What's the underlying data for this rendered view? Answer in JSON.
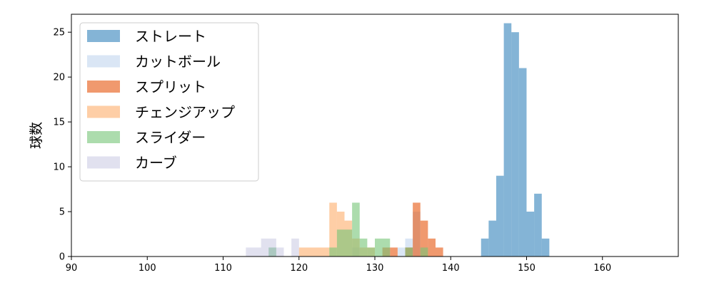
{
  "chart_data": {
    "type": "bar",
    "title": "",
    "xlabel": "",
    "ylabel": "球数",
    "xlim": [
      90,
      170
    ],
    "ylim": [
      0,
      27
    ],
    "xticks": [
      90,
      100,
      110,
      120,
      130,
      140,
      150,
      160
    ],
    "yticks": [
      0,
      5,
      10,
      15,
      20,
      25
    ],
    "grid": false,
    "legend_position": "top-left",
    "series": [
      {
        "name": "ストレート",
        "color": "#1f77b4",
        "opacity": 0.55,
        "bins": [
          {
            "x0": 144.0,
            "x1": 145.0,
            "count": 2
          },
          {
            "x0": 145.0,
            "x1": 146.0,
            "count": 4
          },
          {
            "x0": 146.0,
            "x1": 147.0,
            "count": 9
          },
          {
            "x0": 147.0,
            "x1": 148.0,
            "count": 26
          },
          {
            "x0": 148.0,
            "x1": 149.0,
            "count": 25
          },
          {
            "x0": 149.0,
            "x1": 150.0,
            "count": 21
          },
          {
            "x0": 150.0,
            "x1": 151.0,
            "count": 5
          },
          {
            "x0": 151.0,
            "x1": 152.0,
            "count": 7
          },
          {
            "x0": 152.0,
            "x1": 153.0,
            "count": 2
          }
        ]
      },
      {
        "name": "カットボール",
        "color": "#aec7e8",
        "opacity": 0.45,
        "bins": [
          {
            "x0": 116.0,
            "x1": 117.0,
            "count": 1
          },
          {
            "x0": 127.0,
            "x1": 128.0,
            "count": 1
          },
          {
            "x0": 133.0,
            "x1": 134.0,
            "count": 1
          },
          {
            "x0": 134.0,
            "x1": 135.0,
            "count": 2
          },
          {
            "x0": 135.0,
            "x1": 136.0,
            "count": 5
          }
        ]
      },
      {
        "name": "スプリット",
        "color": "#e6550d",
        "opacity": 0.6,
        "bins": [
          {
            "x0": 131.0,
            "x1": 132.0,
            "count": 1
          },
          {
            "x0": 132.0,
            "x1": 133.0,
            "count": 1
          },
          {
            "x0": 134.0,
            "x1": 135.0,
            "count": 1
          },
          {
            "x0": 135.0,
            "x1": 136.0,
            "count": 6
          },
          {
            "x0": 136.0,
            "x1": 137.0,
            "count": 4
          },
          {
            "x0": 137.0,
            "x1": 138.0,
            "count": 2
          },
          {
            "x0": 138.0,
            "x1": 139.0,
            "count": 1
          }
        ]
      },
      {
        "name": "チェンジアップ",
        "color": "#fdae6b",
        "opacity": 0.6,
        "bins": [
          {
            "x0": 120.0,
            "x1": 122.0,
            "count": 1
          },
          {
            "x0": 122.0,
            "x1": 124.0,
            "count": 1
          },
          {
            "x0": 124.0,
            "x1": 125.0,
            "count": 6
          },
          {
            "x0": 125.0,
            "x1": 126.0,
            "count": 5
          },
          {
            "x0": 126.0,
            "x1": 127.0,
            "count": 4
          },
          {
            "x0": 127.0,
            "x1": 128.0,
            "count": 2
          },
          {
            "x0": 128.0,
            "x1": 130.0,
            "count": 1
          }
        ]
      },
      {
        "name": "スライダー",
        "color": "#74c476",
        "opacity": 0.6,
        "bins": [
          {
            "x0": 116.0,
            "x1": 117.0,
            "count": 1
          },
          {
            "x0": 124.0,
            "x1": 125.0,
            "count": 1
          },
          {
            "x0": 125.0,
            "x1": 127.0,
            "count": 3
          },
          {
            "x0": 127.0,
            "x1": 128.0,
            "count": 6
          },
          {
            "x0": 128.0,
            "x1": 129.0,
            "count": 2
          },
          {
            "x0": 129.0,
            "x1": 130.0,
            "count": 1
          },
          {
            "x0": 130.0,
            "x1": 132.0,
            "count": 2
          },
          {
            "x0": 134.0,
            "x1": 135.0,
            "count": 1
          },
          {
            "x0": 136.0,
            "x1": 137.0,
            "count": 1
          }
        ]
      },
      {
        "name": "カーブ",
        "color": "#bcbddc",
        "opacity": 0.45,
        "bins": [
          {
            "x0": 113.0,
            "x1": 115.0,
            "count": 1
          },
          {
            "x0": 115.0,
            "x1": 117.0,
            "count": 2
          },
          {
            "x0": 117.0,
            "x1": 118.0,
            "count": 1
          },
          {
            "x0": 119.0,
            "x1": 120.0,
            "count": 2
          }
        ]
      }
    ]
  }
}
